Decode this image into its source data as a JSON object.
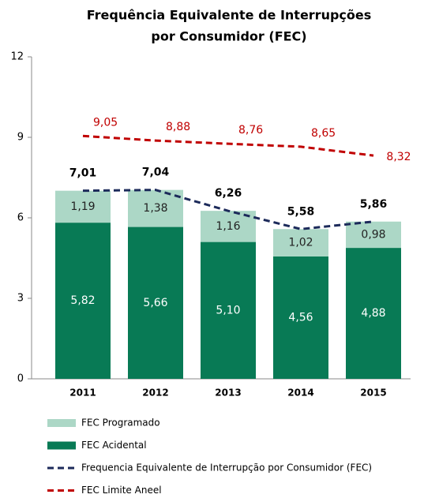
{
  "chart_data": {
    "type": "bar",
    "title": [
      "Frequência Equivalente de Interrupções",
      "por Consumidor (FEC)"
    ],
    "categories": [
      "2011",
      "2012",
      "2013",
      "2014",
      "2015"
    ],
    "ylim": [
      0,
      12
    ],
    "yticks": [
      0,
      3,
      6,
      9,
      12
    ],
    "grid": false,
    "legend": "bottom",
    "series": [
      {
        "name": "FEC Programado",
        "type": "bar",
        "color": "#acd7c6",
        "values": [
          1.19,
          1.38,
          1.16,
          1.02,
          0.98
        ],
        "value_labels": [
          "1,19",
          "1,38",
          "1,16",
          "1,02",
          "0,98"
        ]
      },
      {
        "name": "FEC Acidental",
        "type": "bar",
        "color": "#087a55",
        "values": [
          5.82,
          5.66,
          5.1,
          4.56,
          4.88
        ],
        "value_labels": [
          "5,82",
          "5,66",
          "5,10",
          "4,56",
          "4,88"
        ]
      },
      {
        "name": "Frequencia Equivalente de Interrupção por Consumidor (FEC)",
        "type": "line",
        "color": "#1c2a5a",
        "values": [
          7.01,
          7.04,
          6.26,
          5.58,
          5.86
        ],
        "value_labels": [
          "7,01",
          "7,04",
          "6,26",
          "5,58",
          "5,86"
        ]
      },
      {
        "name": "FEC Limite Aneel",
        "type": "line",
        "color": "#c00000",
        "values": [
          9.05,
          8.88,
          8.76,
          8.65,
          8.32
        ],
        "value_labels": [
          "9,05",
          "8,88",
          "8,76",
          "8,65",
          "8,32"
        ]
      }
    ]
  }
}
